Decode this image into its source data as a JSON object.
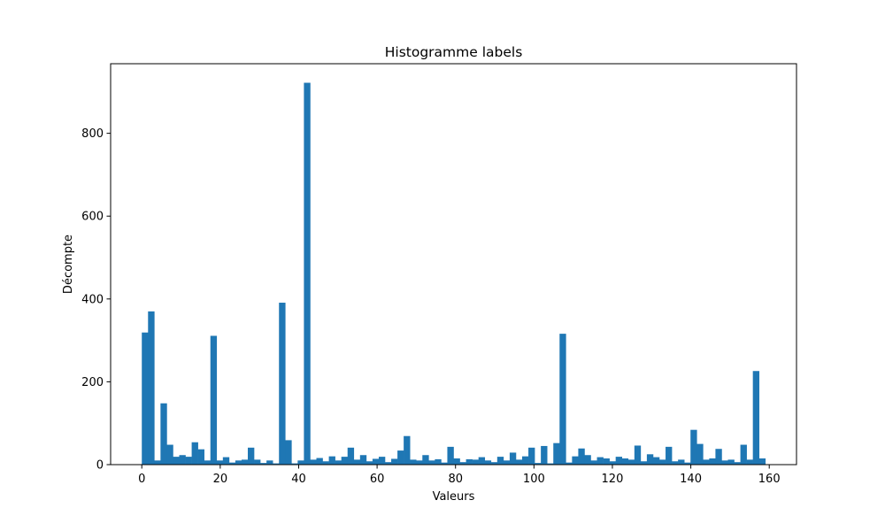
{
  "chart_data": {
    "type": "bar",
    "title": "Histogramme labels",
    "xlabel": "Valeurs",
    "ylabel": "Décompte",
    "xlim": [
      -7.95,
      166.95
    ],
    "ylim": [
      0,
      968
    ],
    "xticks": [
      0,
      20,
      40,
      60,
      80,
      100,
      120,
      140,
      160
    ],
    "yticks": [
      0,
      200,
      400,
      600,
      800
    ],
    "grid": false,
    "bar_color": "#1f77b4",
    "bin_start": 0,
    "bin_width": 1.59,
    "values": [
      319,
      370,
      10,
      148,
      48,
      19,
      23,
      19,
      54,
      37,
      10,
      311,
      10,
      18,
      5,
      10,
      12,
      41,
      12,
      4,
      10,
      3,
      391,
      59,
      3,
      10,
      922,
      12,
      16,
      8,
      20,
      10,
      19,
      41,
      12,
      23,
      8,
      14,
      19,
      6,
      14,
      34,
      69,
      12,
      10,
      23,
      10,
      13,
      5,
      43,
      15,
      6,
      13,
      12,
      18,
      10,
      6,
      19,
      10,
      29,
      12,
      20,
      41,
      4,
      45,
      3,
      52,
      316,
      5,
      20,
      39,
      23,
      10,
      18,
      15,
      8,
      19,
      15,
      12,
      46,
      8,
      25,
      18,
      12,
      43,
      8,
      12,
      5,
      84,
      50,
      12,
      15,
      38,
      10,
      12,
      6,
      48,
      12,
      226,
      15
    ]
  }
}
